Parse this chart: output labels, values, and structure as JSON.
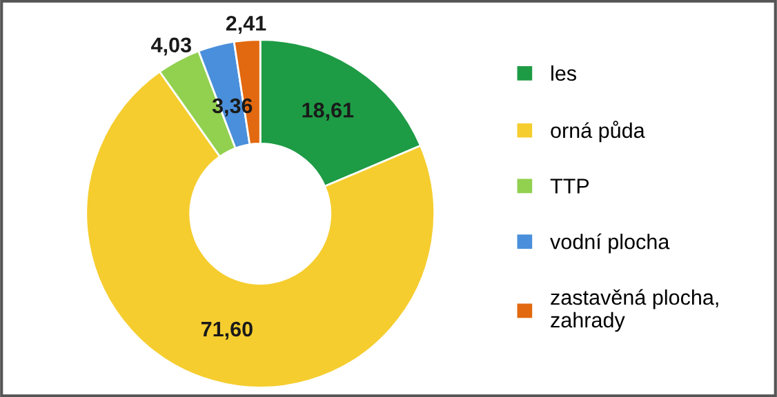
{
  "chart_data": {
    "type": "donut",
    "categories": [
      "les",
      "orná půda",
      "TTP",
      "vodní plocha",
      "zastavěná plocha, zahrady"
    ],
    "values": [
      18.61,
      71.6,
      4.03,
      3.36,
      2.41
    ],
    "colors": [
      "#1e9b45",
      "#f5cd2f",
      "#92d050",
      "#4a8fdb",
      "#e2690f"
    ],
    "value_labels": [
      "18,61",
      "71,60",
      "4,03",
      "3,36",
      "2,41"
    ],
    "legend": "right"
  }
}
